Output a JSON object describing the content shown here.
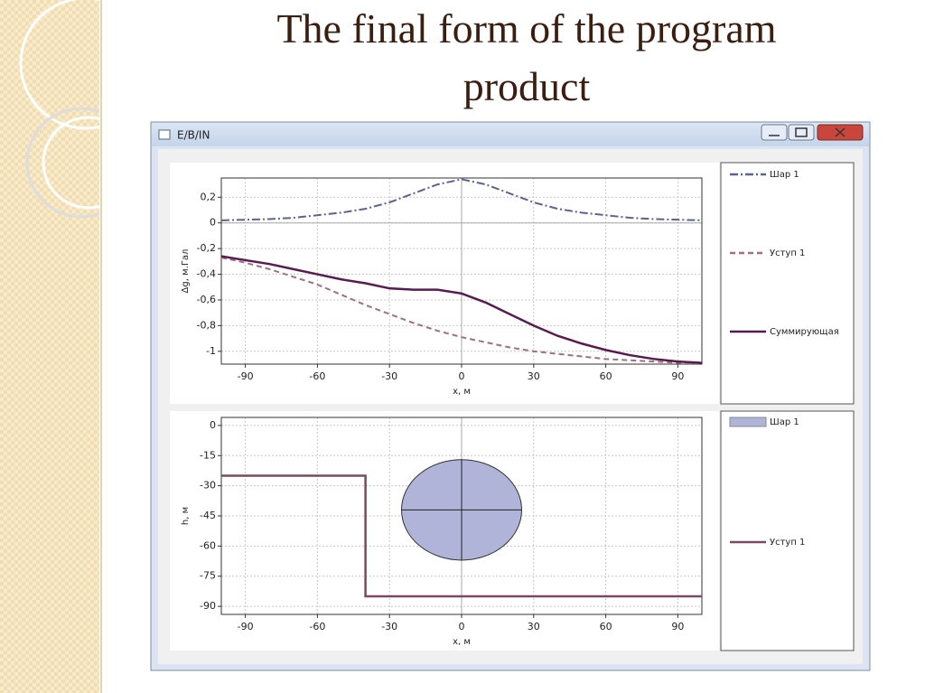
{
  "title": "The final form of the program product",
  "window_title": "E/B/IN",
  "chart_data": [
    {
      "type": "line",
      "xlabel": "x, м",
      "ylabel": "Δg, м.Гал",
      "xlim": [
        -100,
        100
      ],
      "ylim": [
        -1.1,
        0.35
      ],
      "xticks": [
        -90,
        -60,
        -30,
        0,
        30,
        60,
        90
      ],
      "yticks": [
        {
          "value": 0.2,
          "label": "0,2"
        },
        0,
        {
          "value": -0.2,
          "label": "-0,2"
        },
        {
          "value": -0.4,
          "label": "-0,4"
        },
        {
          "value": -0.6,
          "label": "-0,6"
        },
        {
          "value": -0.8,
          "label": "-0,8"
        },
        -1
      ],
      "grid": true,
      "crosshair": [
        "x",
        "y"
      ],
      "x": [
        -100,
        -90,
        -80,
        -70,
        -60,
        -50,
        -40,
        -30,
        -20,
        -10,
        0,
        10,
        20,
        30,
        40,
        50,
        60,
        70,
        80,
        90,
        100
      ],
      "series": [
        {
          "name": "Шар 1",
          "color": "#5c6390",
          "style": "dash-dot",
          "values": [
            0.02,
            0.025,
            0.03,
            0.04,
            0.06,
            0.08,
            0.11,
            0.16,
            0.23,
            0.3,
            0.34,
            0.3,
            0.23,
            0.16,
            0.11,
            0.08,
            0.06,
            0.04,
            0.03,
            0.025,
            0.02
          ]
        },
        {
          "name": "Уступ 1",
          "color": "#a07080",
          "style": "dash",
          "values": [
            -0.27,
            -0.31,
            -0.36,
            -0.42,
            -0.48,
            -0.56,
            -0.64,
            -0.71,
            -0.78,
            -0.84,
            -0.89,
            -0.93,
            -0.97,
            -1.0,
            -1.02,
            -1.04,
            -1.06,
            -1.07,
            -1.08,
            -1.09,
            -1.1
          ]
        },
        {
          "name": "Суммирующая",
          "color": "#5a1a50",
          "style": "solid",
          "values": [
            -0.26,
            -0.29,
            -0.32,
            -0.36,
            -0.4,
            -0.44,
            -0.47,
            -0.51,
            -0.52,
            -0.52,
            -0.55,
            -0.62,
            -0.71,
            -0.8,
            -0.88,
            -0.94,
            -0.99,
            -1.03,
            -1.06,
            -1.08,
            -1.09
          ]
        }
      ]
    },
    {
      "type": "section",
      "xlabel": "x, м",
      "ylabel": "h, м",
      "xlim": [
        -100,
        100
      ],
      "ylim": [
        -94,
        4
      ],
      "xticks": [
        -90,
        -60,
        -30,
        0,
        30,
        60,
        90
      ],
      "yticks": [
        0,
        -15,
        -30,
        -45,
        -60,
        -75,
        -90
      ],
      "grid": true,
      "crosshair": [
        "x"
      ],
      "series": [
        {
          "name": "Шар 1",
          "kind": "circle",
          "color": "#b0b4d8",
          "center_x": 0,
          "center_y": -42,
          "radius": 25
        },
        {
          "name": "Уступ 1",
          "kind": "line",
          "color": "#7a4a60",
          "style": "solid",
          "x": [
            -100,
            -40,
            -40,
            100
          ],
          "values": [
            -25,
            -25,
            -85,
            -85
          ]
        }
      ]
    }
  ]
}
